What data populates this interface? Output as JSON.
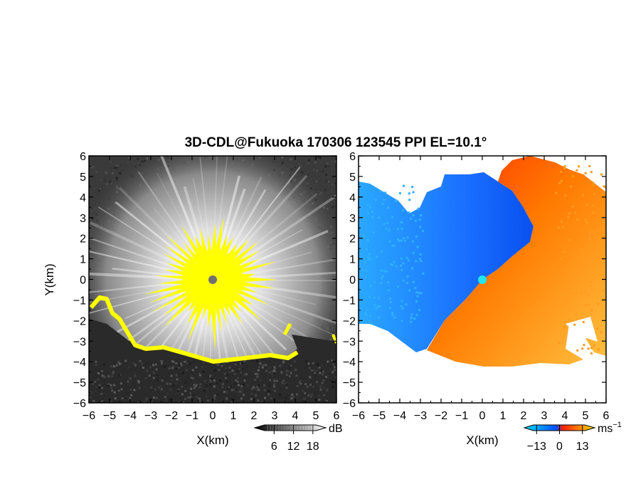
{
  "title": "3D-CDL@Fukuoka 170306 123545 PPI EL=10.1°",
  "chart_data": [
    {
      "type": "heatmap",
      "variable": "backscatter intensity",
      "xlabel": "X(km)",
      "ylabel": "Y(km)",
      "xlim": [
        -6,
        6
      ],
      "ylim": [
        -6,
        6
      ],
      "xticks": [
        "−6",
        "−5",
        "−4",
        "−3",
        "−2",
        "−1",
        "0",
        "1",
        "2",
        "3",
        "4",
        "5",
        "6"
      ],
      "yticks": [
        "6",
        "5",
        "4",
        "3",
        "2",
        "1",
        "0",
        "−1",
        "−2",
        "−3",
        "−4",
        "−5",
        "−6"
      ],
      "colorbar": {
        "unit": "dB",
        "ticks": [
          6,
          12,
          18
        ],
        "tick_labels": [
          "6",
          "12",
          "18"
        ],
        "range": [
          0,
          22
        ],
        "colors": [
          "#000000",
          "#ffffff"
        ]
      },
      "saturated_color": "#ffff00",
      "radar_marker_color": "#707070",
      "clear_range_km": 4.2
    },
    {
      "type": "heatmap",
      "variable": "radial velocity",
      "xlabel": "X(km)",
      "xlim": [
        -6,
        6
      ],
      "ylim": [
        -6,
        6
      ],
      "xticks": [
        "−6",
        "−5",
        "−4",
        "−3",
        "−2",
        "−1",
        "0",
        "1",
        "2",
        "3",
        "4",
        "5",
        "6"
      ],
      "yticks": [
        "6",
        "5",
        "4",
        "3",
        "2",
        "1",
        "0",
        "−1",
        "−2",
        "−3",
        "−4",
        "−5",
        "−6"
      ],
      "colorbar": {
        "unit": "ms−1",
        "unit_base": "ms",
        "unit_exp": "−1",
        "ticks": [
          -13,
          0,
          13
        ],
        "tick_labels": [
          "−13",
          "0",
          "13"
        ],
        "range": [
          -20,
          20
        ],
        "colors": [
          "#00e0ff",
          "#0050ff",
          "#ff2000",
          "#ffe000"
        ]
      },
      "approaching_color": "#1e6aff",
      "receding_color": "#ff6a00",
      "radar_marker_color": "#20e8f0"
    }
  ]
}
